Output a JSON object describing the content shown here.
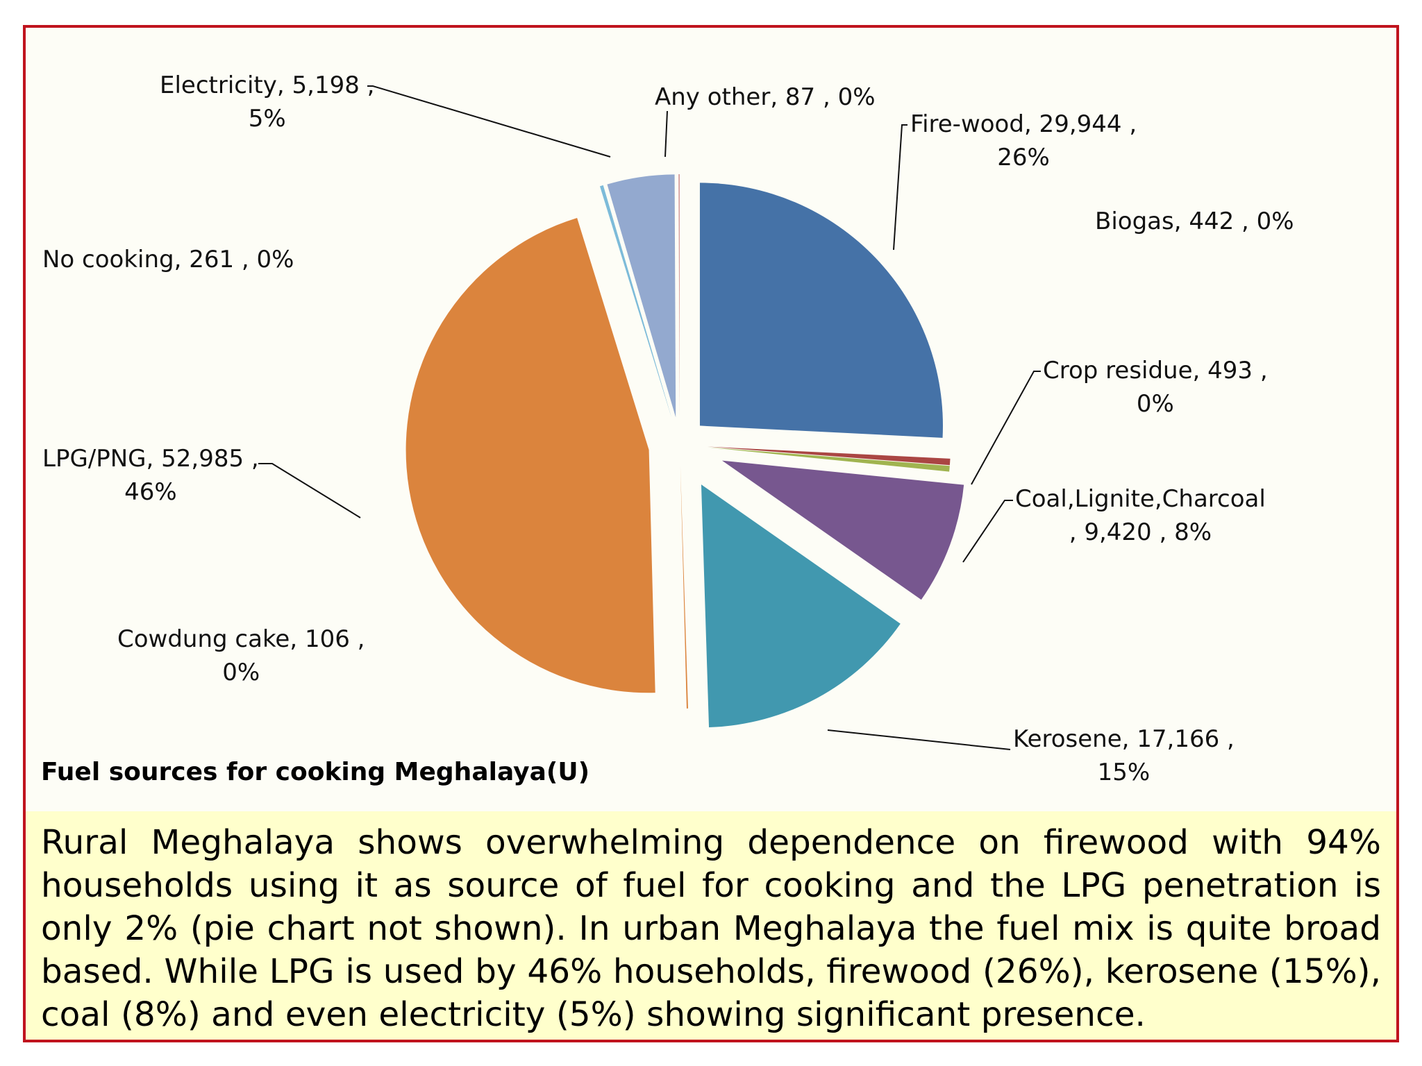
{
  "chart_data": {
    "type": "pie",
    "title": "Fuel sources for cooking Meghalaya(U)",
    "slices": [
      {
        "name": "Fire-wood",
        "value": 29944,
        "value_text": "29,944",
        "percent": "26%",
        "color": "#4572a7",
        "label_lines": [
          "Fire-wood,  29,944 ,",
          "26%"
        ]
      },
      {
        "name": "Crop residue",
        "value": 493,
        "value_text": "493",
        "percent": "0%",
        "color": "#aa4643",
        "label_lines": [
          "Crop residue,  493 ,",
          "0%"
        ]
      },
      {
        "name": "Biogas",
        "value": 442,
        "value_text": "442",
        "percent": "0%",
        "color": "#a0b450",
        "label_lines": [
          "Biogas,  442 , 0%"
        ]
      },
      {
        "name": "Coal,Lignite,Charcoal",
        "value": 9420,
        "value_text": "9,420",
        "percent": "8%",
        "color": "#77578f",
        "label_lines": [
          "Coal,Lignite,Charcoal",
          ",  9,420 , 8%"
        ]
      },
      {
        "name": "Kerosene",
        "value": 17166,
        "value_text": "17,166",
        "percent": "15%",
        "color": "#4198af",
        "label_lines": [
          "Kerosene,  17,166 ,",
          "15%"
        ]
      },
      {
        "name": "Cowdung cake",
        "value": 106,
        "value_text": "106",
        "percent": "0%",
        "color": "#db843d",
        "label_lines": [
          "Cowdung cake,  106 ,",
          "0%"
        ]
      },
      {
        "name": "LPG/PNG",
        "value": 52985,
        "value_text": "52,985",
        "percent": "46%",
        "color": "#db843d",
        "label_lines": [
          "LPG/PNG,  52,985 ,",
          "46%"
        ]
      },
      {
        "name": "No cooking",
        "value": 261,
        "value_text": "261",
        "percent": "0%",
        "color": "#7dbbd9",
        "label_lines": [
          "No cooking,  261 , 0%"
        ]
      },
      {
        "name": "Electricity",
        "value": 5198,
        "value_text": "5,198",
        "percent": "5%",
        "color": "#93a9cf",
        "label_lines": [
          "Electricity,  5,198 ,",
          "5%"
        ]
      },
      {
        "name": "Any other",
        "value": 87,
        "value_text": "87",
        "percent": "0%",
        "color": "#d19392",
        "label_lines": [
          "Any other,  87 , 0%"
        ]
      }
    ]
  },
  "caption": "Rural Meghalaya shows overwhelming dependence on firewood with 94% households using it as source of fuel for cooking and the LPG penetration is only 2% (pie chart not shown). In urban Meghalaya the fuel mix is quite broad based. While LPG is used by 46% households, firewood (26%), kerosene (15%), coal (8%) and even electricity (5%)  showing significant presence."
}
